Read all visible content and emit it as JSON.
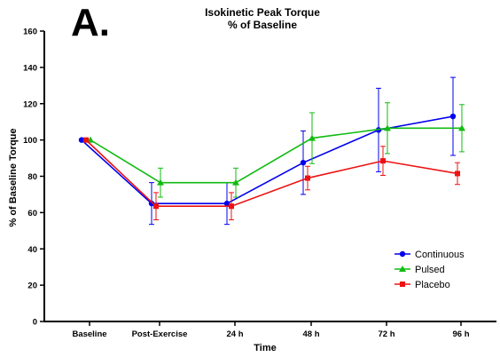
{
  "panel_label": "A.",
  "chart_data": {
    "type": "line",
    "title": "Isokinetic Peak Torque",
    "subtitle": "% of Baseline",
    "xlabel": "Time",
    "ylabel": "% of Baseline Torque",
    "categories": [
      "Baseline",
      "Post-Exercise",
      "24 h",
      "48 h",
      "72 h",
      "96 h"
    ],
    "ylim": [
      0,
      160
    ],
    "yticks": [
      0,
      20,
      40,
      60,
      80,
      100,
      120,
      140,
      160
    ],
    "grid": false,
    "legend_position": "bottom-right",
    "series": [
      {
        "name": "Continuous",
        "color": "#0000ee",
        "marker": "circle",
        "values": [
          100,
          65,
          65,
          87.5,
          105.5,
          113
        ],
        "error": [
          0,
          11.5,
          11.5,
          17.5,
          23,
          21.5
        ]
      },
      {
        "name": "Pulsed",
        "color": "#11bb11",
        "marker": "triangle",
        "values": [
          100,
          76.5,
          76.5,
          101,
          106.5,
          106.5
        ],
        "error": [
          0,
          8,
          8,
          14,
          14,
          13
        ]
      },
      {
        "name": "Placebo",
        "color": "#ee1111",
        "marker": "square",
        "values": [
          100,
          63.5,
          63.5,
          79,
          88.5,
          81.5
        ],
        "error": [
          0,
          7.5,
          7.5,
          6.5,
          8,
          6
        ]
      }
    ]
  }
}
